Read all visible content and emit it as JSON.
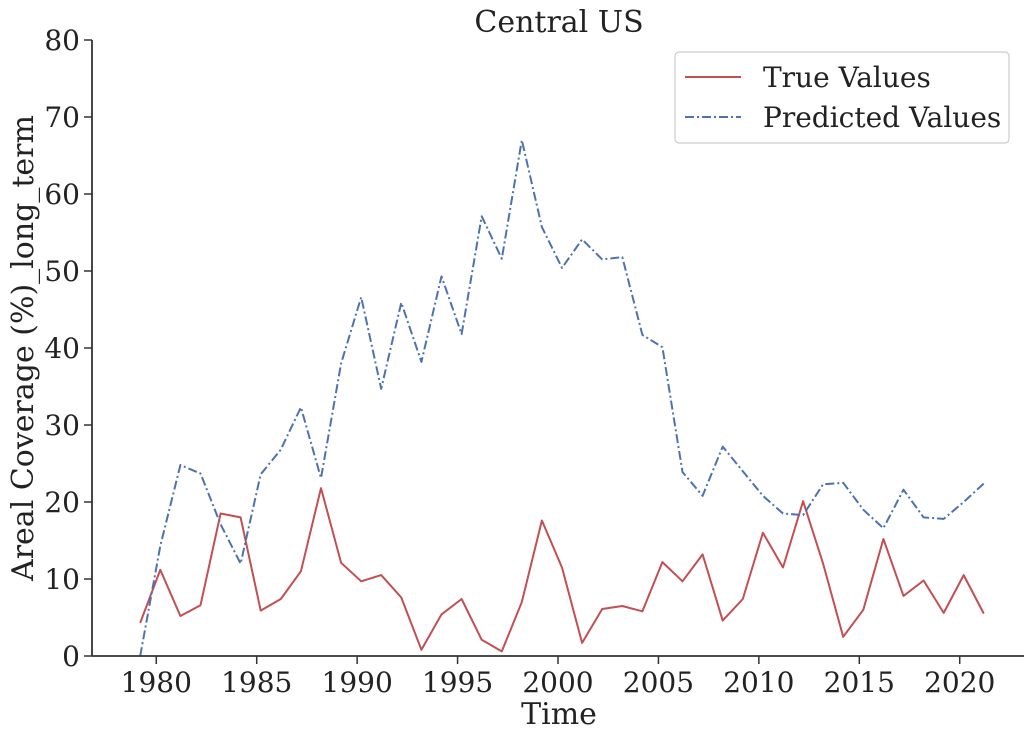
{
  "chart_data": {
    "type": "line",
    "title": "Central US",
    "xlabel": "Time",
    "ylabel": "Areal Coverage (%)_long_term",
    "xlim": [
      1976.8,
      2023.2
    ],
    "ylim": [
      0,
      80
    ],
    "xticks": [
      1980,
      1985,
      1990,
      1995,
      2000,
      2005,
      2010,
      2015,
      2020
    ],
    "yticks": [
      0,
      10,
      20,
      30,
      40,
      50,
      60,
      70,
      80
    ],
    "grid": false,
    "legend_position": "top-right",
    "x": [
      1979.2,
      1980.2,
      1981.2,
      1982.2,
      1983.2,
      1984.2,
      1985.2,
      1986.2,
      1987.2,
      1988.2,
      1989.2,
      1990.2,
      1991.2,
      1992.2,
      1993.2,
      1994.2,
      1995.2,
      1996.2,
      1997.2,
      1998.2,
      1999.2,
      2000.2,
      2001.2,
      2002.2,
      2003.2,
      2004.2,
      2005.2,
      2006.2,
      2007.2,
      2008.2,
      2009.2,
      2010.2,
      2011.2,
      2012.2,
      2013.2,
      2014.2,
      2015.2,
      2016.2,
      2017.2,
      2018.2,
      2019.2,
      2020.2,
      2021.2
    ],
    "series": [
      {
        "name": "True Values",
        "color": "#c44e52",
        "style": "solid",
        "values": [
          4.3,
          11.2,
          5.2,
          6.6,
          18.5,
          18.0,
          5.9,
          7.4,
          11.0,
          21.8,
          12.1,
          9.7,
          10.5,
          7.6,
          0.8,
          5.4,
          7.4,
          2.1,
          0.6,
          7.0,
          17.6,
          11.5,
          1.7,
          6.1,
          6.5,
          5.8,
          12.2,
          9.7,
          13.2,
          4.6,
          7.4,
          16.0,
          11.5,
          20.1,
          12.0,
          2.5,
          6.0,
          15.2,
          7.8,
          9.8,
          5.6,
          10.5,
          5.5
        ]
      },
      {
        "name": "Predicted Values",
        "color": "#4c72b0",
        "style": "dashdot",
        "values": [
          0.0,
          14.3,
          24.8,
          23.7,
          17.1,
          12.0,
          23.6,
          26.8,
          32.3,
          23.1,
          38.0,
          46.6,
          34.7,
          45.9,
          38.2,
          49.3,
          41.8,
          57.1,
          51.6,
          67.0,
          55.7,
          50.4,
          54.1,
          51.5,
          51.8,
          41.7,
          40.1,
          23.9,
          20.8,
          27.2,
          24.0,
          20.8,
          18.5,
          18.3,
          22.3,
          22.5,
          19.0,
          16.6,
          21.6,
          18.0,
          17.8,
          20.0,
          22.4
        ]
      }
    ]
  }
}
